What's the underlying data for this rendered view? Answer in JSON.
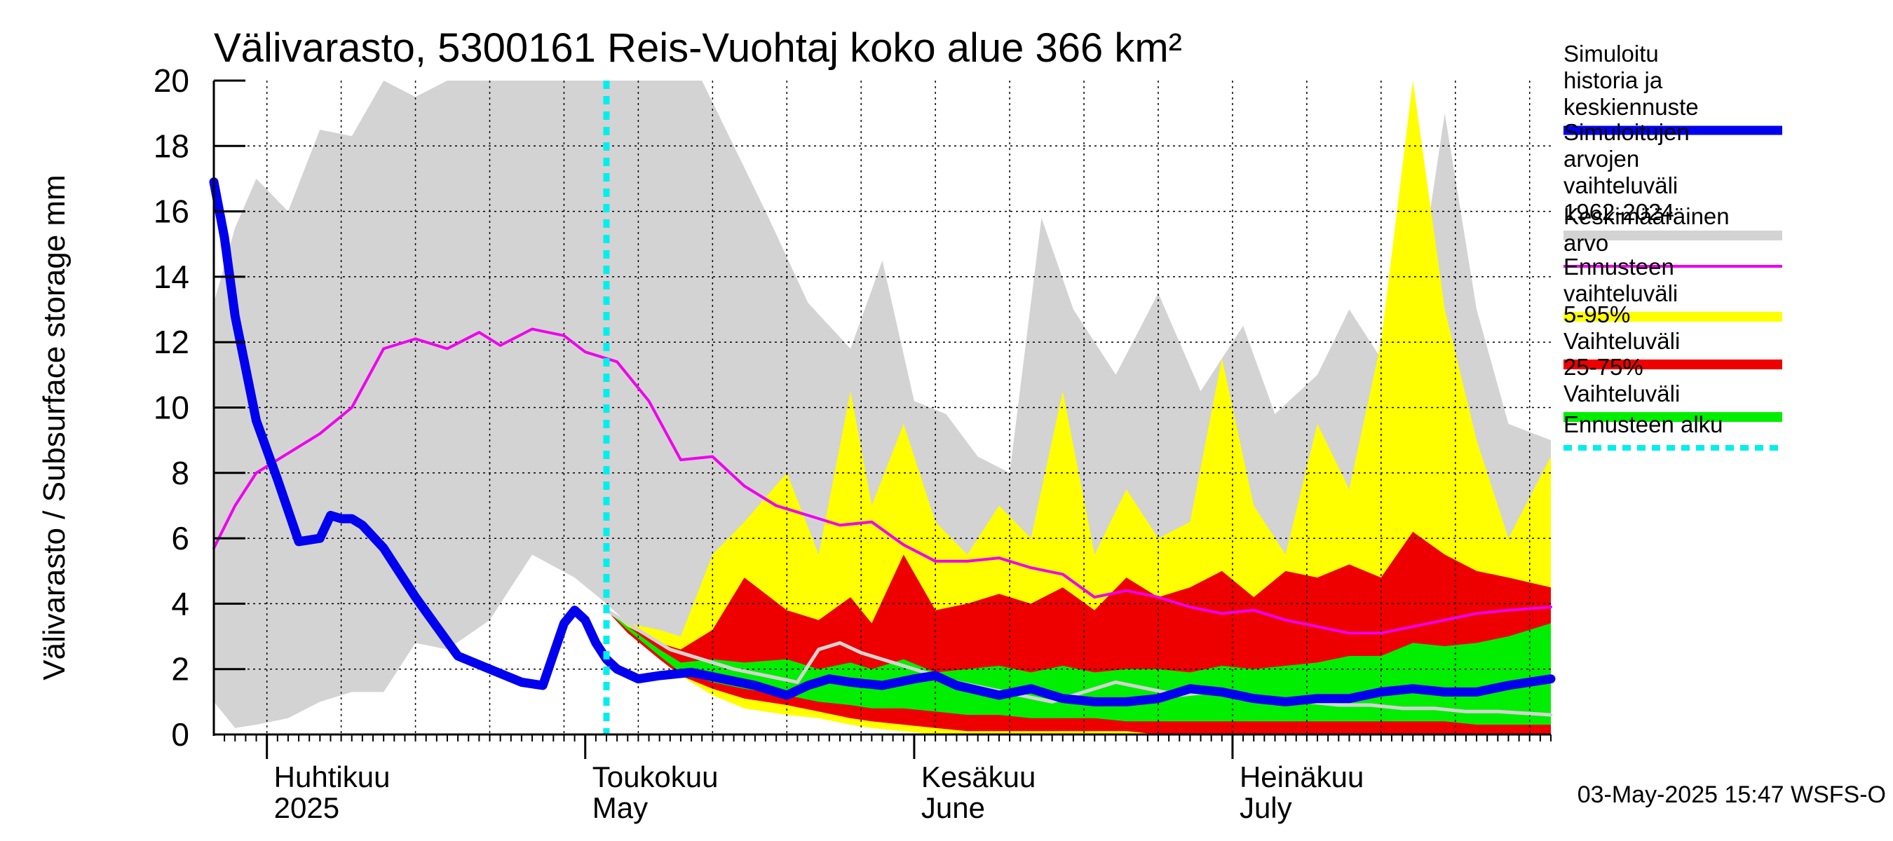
{
  "chart_data": {
    "type": "area",
    "title": "Välivarasto, 5300161 Reis-Vuohtaj koko alue 366 km²",
    "ylabel": "Välivarasto / Subsurface storage  mm",
    "ylim": [
      0,
      20
    ],
    "yticks": [
      "0",
      "2",
      "4",
      "6",
      "8",
      "10",
      "12",
      "14",
      "16",
      "18",
      "20"
    ],
    "xlim": [
      "2025-03-27",
      "2025-07-31"
    ],
    "month_labels": [
      {
        "date": "2025-04-01",
        "fi": "Huhtikuu",
        "en": "2025"
      },
      {
        "date": "2025-05-01",
        "fi": "Toukokuu",
        "en": "May"
      },
      {
        "date": "2025-06-01",
        "fi": "Kesäkuu",
        "en": "June"
      },
      {
        "date": "2025-07-01",
        "fi": "Heinäkuu",
        "en": "July"
      }
    ],
    "grid": true,
    "forecast_start": "2025-05-03",
    "timestamp": "03-May-2025 15:47 WSFS-O",
    "legend": [
      {
        "label": "Simuloitu historia ja keskiennuste",
        "color": "#0000ee",
        "style": "thick"
      },
      {
        "label": "Simuloitujen arvojen vaihteluväli 1962-2024",
        "color": "#d3d3d3",
        "style": "band"
      },
      {
        "label": "Keskimääräinen arvo",
        "color": "#ee00ee",
        "style": "line"
      },
      {
        "label": "Ennusteen vaihteluväli",
        "color": "#ffff00",
        "style": "band"
      },
      {
        "label": "5-95% Vaihteluväli",
        "color": "#ee0000",
        "style": "band"
      },
      {
        "label": "25-75% Vaihteluväli",
        "color": "#00ee00",
        "style": "band"
      },
      {
        "label": "Ennusteen alku",
        "color": "#00eeee",
        "style": "dotted"
      }
    ],
    "series": [
      {
        "name": "Simuloitujen arvojen vaihteluväli 1962-2024",
        "kind": "band",
        "x": [
          "2025-03-27",
          "2025-03-29",
          "2025-03-31",
          "2025-04-03",
          "2025-04-06",
          "2025-04-09",
          "2025-04-12",
          "2025-04-15",
          "2025-04-18",
          "2025-04-22",
          "2025-04-26",
          "2025-04-30",
          "2025-05-03",
          "2025-05-07",
          "2025-05-12",
          "2025-05-15",
          "2025-05-18",
          "2025-05-22",
          "2025-05-26",
          "2025-05-29",
          "2025-06-01",
          "2025-06-04",
          "2025-06-07",
          "2025-06-10",
          "2025-06-13",
          "2025-06-16",
          "2025-06-20",
          "2025-06-24",
          "2025-06-28",
          "2025-07-02",
          "2025-07-05",
          "2025-07-09",
          "2025-07-12",
          "2025-07-15",
          "2025-07-18",
          "2025-07-21",
          "2025-07-24",
          "2025-07-27",
          "2025-07-31"
        ],
        "low": [
          1.0,
          0.2,
          0.3,
          0.5,
          1.0,
          1.3,
          1.3,
          2.8,
          2.6,
          3.5,
          5.5,
          4.8,
          4.0,
          2.8,
          2.2,
          1.8,
          1.4,
          1.0,
          0.6,
          0.4,
          0.3,
          0.2,
          0.1,
          0.1,
          0.1,
          0.0,
          0.0,
          0.0,
          0.0,
          0.0,
          0.0,
          0.0,
          0.0,
          0.0,
          0.0,
          0.0,
          0.0,
          0.0,
          0.0
        ],
        "high": [
          13.2,
          15.5,
          17.0,
          16.0,
          18.5,
          18.3,
          20.0,
          19.5,
          20.0,
          20.0,
          20.0,
          20.0,
          20.0,
          20.0,
          20.0,
          18.0,
          16.0,
          13.2,
          11.8,
          14.5,
          10.2,
          9.8,
          8.5,
          8.0,
          15.8,
          13.0,
          11.0,
          13.5,
          10.5,
          12.5,
          9.8,
          11.0,
          13.0,
          11.5,
          12.5,
          19.0,
          13.0,
          9.5,
          9.0
        ]
      },
      {
        "name": "Ennusteen vaihteluväli",
        "kind": "band",
        "x": [
          "2025-05-03",
          "2025-05-05",
          "2025-05-08",
          "2025-05-10",
          "2025-05-13",
          "2025-05-16",
          "2025-05-20",
          "2025-05-23",
          "2025-05-26",
          "2025-05-28",
          "2025-05-31",
          "2025-06-03",
          "2025-06-06",
          "2025-06-09",
          "2025-06-12",
          "2025-06-15",
          "2025-06-18",
          "2025-06-21",
          "2025-06-24",
          "2025-06-27",
          "2025-06-30",
          "2025-07-03",
          "2025-07-06",
          "2025-07-09",
          "2025-07-12",
          "2025-07-15",
          "2025-07-18",
          "2025-07-21",
          "2025-07-24",
          "2025-07-27",
          "2025-07-31"
        ],
        "low": [
          3.8,
          3.2,
          2.5,
          1.8,
          1.2,
          0.8,
          0.6,
          0.5,
          0.3,
          0.2,
          0.1,
          0.0,
          0.0,
          0.0,
          0.0,
          0.0,
          0.0,
          0.0,
          0.0,
          0.0,
          0.0,
          0.0,
          0.0,
          0.0,
          0.0,
          0.0,
          0.0,
          0.0,
          0.0,
          0.0,
          0.0
        ],
        "high": [
          3.8,
          3.4,
          3.2,
          3.0,
          5.5,
          6.5,
          8.0,
          5.5,
          10.5,
          7.0,
          9.5,
          6.5,
          5.5,
          7.0,
          6.0,
          10.5,
          5.5,
          7.5,
          6.0,
          6.5,
          11.5,
          7.0,
          5.5,
          9.5,
          7.5,
          12.0,
          20.0,
          13.0,
          9.0,
          6.0,
          8.5
        ]
      },
      {
        "name": "5-95% Vaihteluväli",
        "kind": "band",
        "x": [
          "2025-05-03",
          "2025-05-05",
          "2025-05-08",
          "2025-05-10",
          "2025-05-13",
          "2025-05-16",
          "2025-05-20",
          "2025-05-23",
          "2025-05-26",
          "2025-05-28",
          "2025-05-31",
          "2025-06-03",
          "2025-06-06",
          "2025-06-09",
          "2025-06-12",
          "2025-06-15",
          "2025-06-18",
          "2025-06-21",
          "2025-06-24",
          "2025-06-27",
          "2025-06-30",
          "2025-07-03",
          "2025-07-06",
          "2025-07-09",
          "2025-07-12",
          "2025-07-15",
          "2025-07-18",
          "2025-07-21",
          "2025-07-24",
          "2025-07-27",
          "2025-07-31"
        ],
        "low": [
          3.8,
          3.1,
          2.3,
          1.8,
          1.4,
          1.1,
          0.9,
          0.7,
          0.5,
          0.4,
          0.3,
          0.2,
          0.1,
          0.1,
          0.1,
          0.1,
          0.1,
          0.1,
          0.0,
          0.0,
          0.0,
          0.0,
          0.0,
          0.0,
          0.0,
          0.0,
          0.0,
          0.0,
          0.0,
          0.0,
          0.0
        ],
        "high": [
          3.8,
          3.3,
          2.8,
          2.6,
          3.2,
          4.8,
          3.8,
          3.5,
          4.2,
          3.4,
          5.5,
          3.8,
          4.0,
          4.3,
          4.0,
          4.5,
          3.8,
          4.8,
          4.2,
          4.5,
          5.0,
          4.2,
          5.0,
          4.8,
          5.2,
          4.8,
          6.2,
          5.5,
          5.0,
          4.8,
          4.5
        ]
      },
      {
        "name": "25-75% Vaihteluväli",
        "kind": "band",
        "x": [
          "2025-05-03",
          "2025-05-05",
          "2025-05-08",
          "2025-05-10",
          "2025-05-13",
          "2025-05-16",
          "2025-05-20",
          "2025-05-23",
          "2025-05-26",
          "2025-05-28",
          "2025-05-31",
          "2025-06-03",
          "2025-06-06",
          "2025-06-09",
          "2025-06-12",
          "2025-06-15",
          "2025-06-18",
          "2025-06-21",
          "2025-06-24",
          "2025-06-27",
          "2025-06-30",
          "2025-07-03",
          "2025-07-06",
          "2025-07-09",
          "2025-07-12",
          "2025-07-15",
          "2025-07-18",
          "2025-07-21",
          "2025-07-24",
          "2025-07-27",
          "2025-07-31"
        ],
        "low": [
          3.8,
          3.2,
          2.4,
          1.9,
          1.6,
          1.4,
          1.2,
          1.0,
          0.9,
          0.8,
          0.8,
          0.7,
          0.6,
          0.6,
          0.5,
          0.5,
          0.5,
          0.4,
          0.4,
          0.4,
          0.4,
          0.4,
          0.4,
          0.4,
          0.4,
          0.4,
          0.4,
          0.4,
          0.3,
          0.3,
          0.3
        ],
        "high": [
          3.8,
          3.3,
          2.6,
          2.2,
          2.3,
          2.2,
          2.3,
          2.0,
          2.2,
          2.0,
          2.3,
          1.9,
          2.0,
          2.1,
          1.9,
          2.1,
          1.9,
          2.0,
          2.0,
          1.9,
          2.1,
          2.0,
          2.1,
          2.2,
          2.4,
          2.4,
          2.8,
          2.7,
          2.8,
          3.0,
          3.4
        ]
      },
      {
        "name": "Keskimääräinen arvo",
        "kind": "line",
        "color": "#ee00ee",
        "x": [
          "2025-03-27",
          "2025-03-29",
          "2025-03-31",
          "2025-04-03",
          "2025-04-06",
          "2025-04-09",
          "2025-04-12",
          "2025-04-15",
          "2025-04-18",
          "2025-04-21",
          "2025-04-23",
          "2025-04-26",
          "2025-04-29",
          "2025-05-01",
          "2025-05-04",
          "2025-05-07",
          "2025-05-10",
          "2025-05-13",
          "2025-05-16",
          "2025-05-19",
          "2025-05-22",
          "2025-05-25",
          "2025-05-28",
          "2025-05-31",
          "2025-06-03",
          "2025-06-06",
          "2025-06-09",
          "2025-06-12",
          "2025-06-15",
          "2025-06-18",
          "2025-06-21",
          "2025-06-24",
          "2025-06-27",
          "2025-06-30",
          "2025-07-03",
          "2025-07-06",
          "2025-07-09",
          "2025-07-12",
          "2025-07-15",
          "2025-07-18",
          "2025-07-21",
          "2025-07-24",
          "2025-07-27",
          "2025-07-31"
        ],
        "values": [
          5.7,
          7.0,
          8.0,
          8.6,
          9.2,
          10.0,
          11.8,
          12.1,
          11.8,
          12.3,
          11.9,
          12.4,
          12.2,
          11.7,
          11.4,
          10.2,
          8.4,
          8.5,
          7.6,
          7.0,
          6.7,
          6.4,
          6.5,
          5.8,
          5.3,
          5.3,
          5.4,
          5.1,
          4.9,
          4.2,
          4.4,
          4.2,
          3.9,
          3.7,
          3.8,
          3.5,
          3.3,
          3.1,
          3.1,
          3.3,
          3.5,
          3.7,
          3.8,
          3.9
        ]
      },
      {
        "name": "Simuloitu historia ja keskiennuste",
        "kind": "line",
        "color": "#0000ee",
        "x": [
          "2025-03-27",
          "2025-03-28",
          "2025-03-29",
          "2025-03-31",
          "2025-04-02",
          "2025-04-04",
          "2025-04-06",
          "2025-04-07",
          "2025-04-08",
          "2025-04-09",
          "2025-04-10",
          "2025-04-12",
          "2025-04-14",
          "2025-04-15",
          "2025-04-17",
          "2025-04-19",
          "2025-04-22",
          "2025-04-25",
          "2025-04-27",
          "2025-04-29",
          "2025-04-30",
          "2025-05-01",
          "2025-05-02",
          "2025-05-03",
          "2025-05-04",
          "2025-05-06",
          "2025-05-08",
          "2025-05-11",
          "2025-05-14",
          "2025-05-17",
          "2025-05-20",
          "2025-05-22",
          "2025-05-24",
          "2025-05-26",
          "2025-05-29",
          "2025-06-01",
          "2025-06-03",
          "2025-06-05",
          "2025-06-09",
          "2025-06-12",
          "2025-06-15",
          "2025-06-18",
          "2025-06-21",
          "2025-06-24",
          "2025-06-27",
          "2025-06-30",
          "2025-07-03",
          "2025-07-06",
          "2025-07-09",
          "2025-07-12",
          "2025-07-15",
          "2025-07-18",
          "2025-07-21",
          "2025-07-24",
          "2025-07-27",
          "2025-07-31"
        ],
        "values": [
          16.9,
          15.2,
          12.8,
          9.6,
          7.8,
          5.9,
          6.0,
          6.7,
          6.6,
          6.6,
          6.4,
          5.7,
          4.7,
          4.2,
          3.3,
          2.4,
          2.0,
          1.6,
          1.5,
          3.4,
          3.8,
          3.5,
          2.8,
          2.3,
          2.0,
          1.7,
          1.8,
          1.9,
          1.7,
          1.5,
          1.2,
          1.5,
          1.7,
          1.6,
          1.5,
          1.7,
          1.8,
          1.5,
          1.2,
          1.4,
          1.1,
          1.0,
          1.0,
          1.1,
          1.4,
          1.3,
          1.1,
          1.0,
          1.1,
          1.1,
          1.3,
          1.4,
          1.3,
          1.3,
          1.5,
          1.7
        ]
      },
      {
        "name": "median",
        "kind": "line",
        "color": "#d3d3d3",
        "x": [
          "2025-05-03",
          "2025-05-06",
          "2025-05-09",
          "2025-05-12",
          "2025-05-15",
          "2025-05-18",
          "2025-05-21",
          "2025-05-23",
          "2025-05-25",
          "2025-05-27",
          "2025-05-30",
          "2025-06-02",
          "2025-06-05",
          "2025-06-08",
          "2025-06-11",
          "2025-06-14",
          "2025-06-17",
          "2025-06-20",
          "2025-06-23",
          "2025-06-26",
          "2025-06-29",
          "2025-07-02",
          "2025-07-05",
          "2025-07-08",
          "2025-07-11",
          "2025-07-14",
          "2025-07-17",
          "2025-07-20",
          "2025-07-23",
          "2025-07-26",
          "2025-07-31"
        ],
        "values": [
          3.8,
          3.2,
          2.6,
          2.3,
          2.0,
          1.8,
          1.6,
          2.6,
          2.8,
          2.5,
          2.2,
          1.9,
          1.6,
          1.4,
          1.2,
          1.0,
          1.3,
          1.6,
          1.4,
          1.2,
          1.3,
          1.1,
          1.0,
          1.0,
          0.9,
          0.9,
          0.8,
          0.8,
          0.7,
          0.7,
          0.6
        ]
      }
    ]
  }
}
